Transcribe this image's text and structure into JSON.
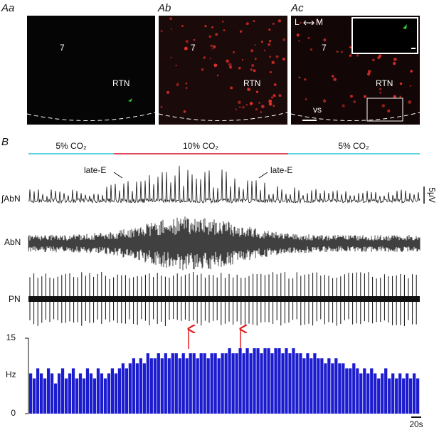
{
  "panel_a": {
    "images": [
      {
        "label": "Aa",
        "number": "7",
        "region": "RTN"
      },
      {
        "label": "Ab",
        "number": "7",
        "region": "RTN"
      },
      {
        "label": "Ac",
        "number": "7",
        "region": "RTN",
        "surface": "vs",
        "lateral": "L",
        "medial": "M"
      }
    ]
  },
  "panel_b": {
    "label": "B",
    "conditions": [
      "5% CO₂",
      "10% CO₂",
      "5% CO₂"
    ],
    "traces": [
      "∫AbN",
      "AbN",
      "PN"
    ],
    "annotations": [
      "late-E",
      "late-E"
    ],
    "voltage_scale": "5μV",
    "time_scale": "20s"
  },
  "chart_data": {
    "type": "bar",
    "ylabel": "Hz",
    "ylim": [
      0,
      15
    ],
    "yticks": [
      0,
      15
    ],
    "color": "#1c1ccf",
    "values": [
      8,
      7,
      9,
      8,
      7,
      9,
      8,
      6,
      8,
      9,
      7,
      8,
      9,
      7,
      8,
      7,
      9,
      8,
      7,
      9,
      8,
      7,
      8,
      9,
      8,
      9,
      10,
      9,
      10,
      11,
      10,
      11,
      10,
      12,
      11,
      11,
      12,
      11,
      12,
      11,
      12,
      12,
      11,
      12,
      11,
      12,
      12,
      11,
      12,
      12,
      11,
      12,
      12,
      11,
      12,
      12,
      13,
      12,
      12,
      13,
      12,
      13,
      12,
      13,
      13,
      12,
      13,
      13,
      12,
      13,
      13,
      12,
      13,
      12,
      13,
      12,
      12,
      11,
      12,
      11,
      12,
      11,
      11,
      10,
      11,
      10,
      11,
      10,
      10,
      9,
      9,
      10,
      9,
      8,
      9,
      8,
      9,
      8,
      7,
      8,
      9,
      7,
      8,
      7,
      8,
      7,
      8,
      7,
      8,
      7
    ]
  }
}
